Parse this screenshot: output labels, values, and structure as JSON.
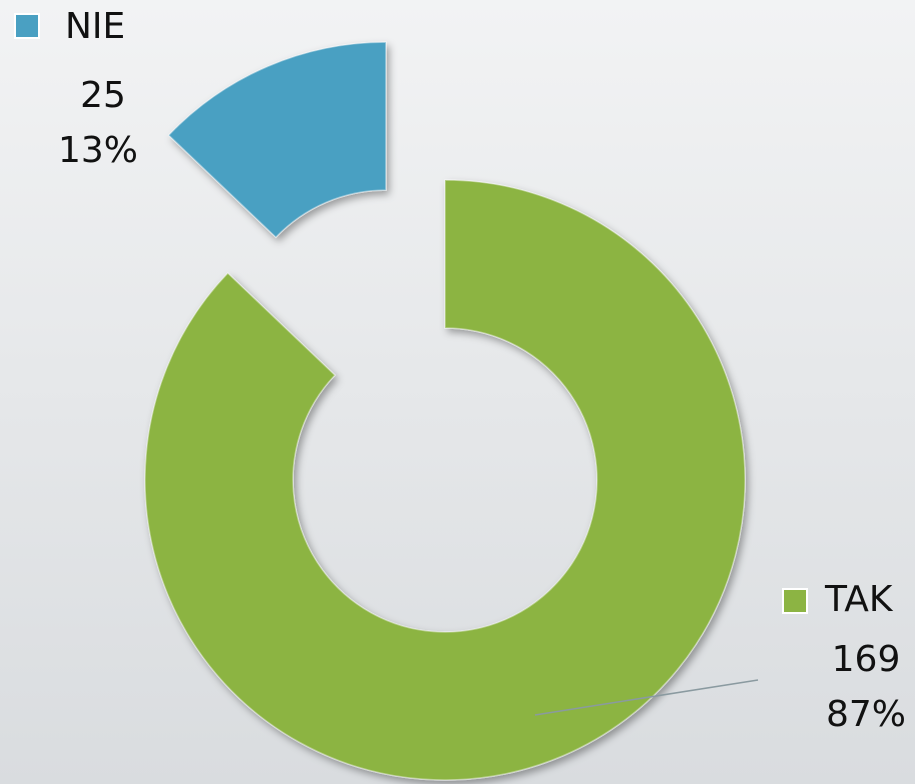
{
  "chart_data": {
    "type": "pie",
    "categories": [
      "TAK",
      "NIE"
    ],
    "values": [
      169,
      25
    ],
    "percent_labels": [
      "87%",
      "13%"
    ],
    "series": [
      {
        "name": "TAK",
        "color": "#8cb443"
      },
      {
        "name": "NIE",
        "color": "#4aa0c2"
      }
    ],
    "donut": true,
    "legend": true
  }
}
